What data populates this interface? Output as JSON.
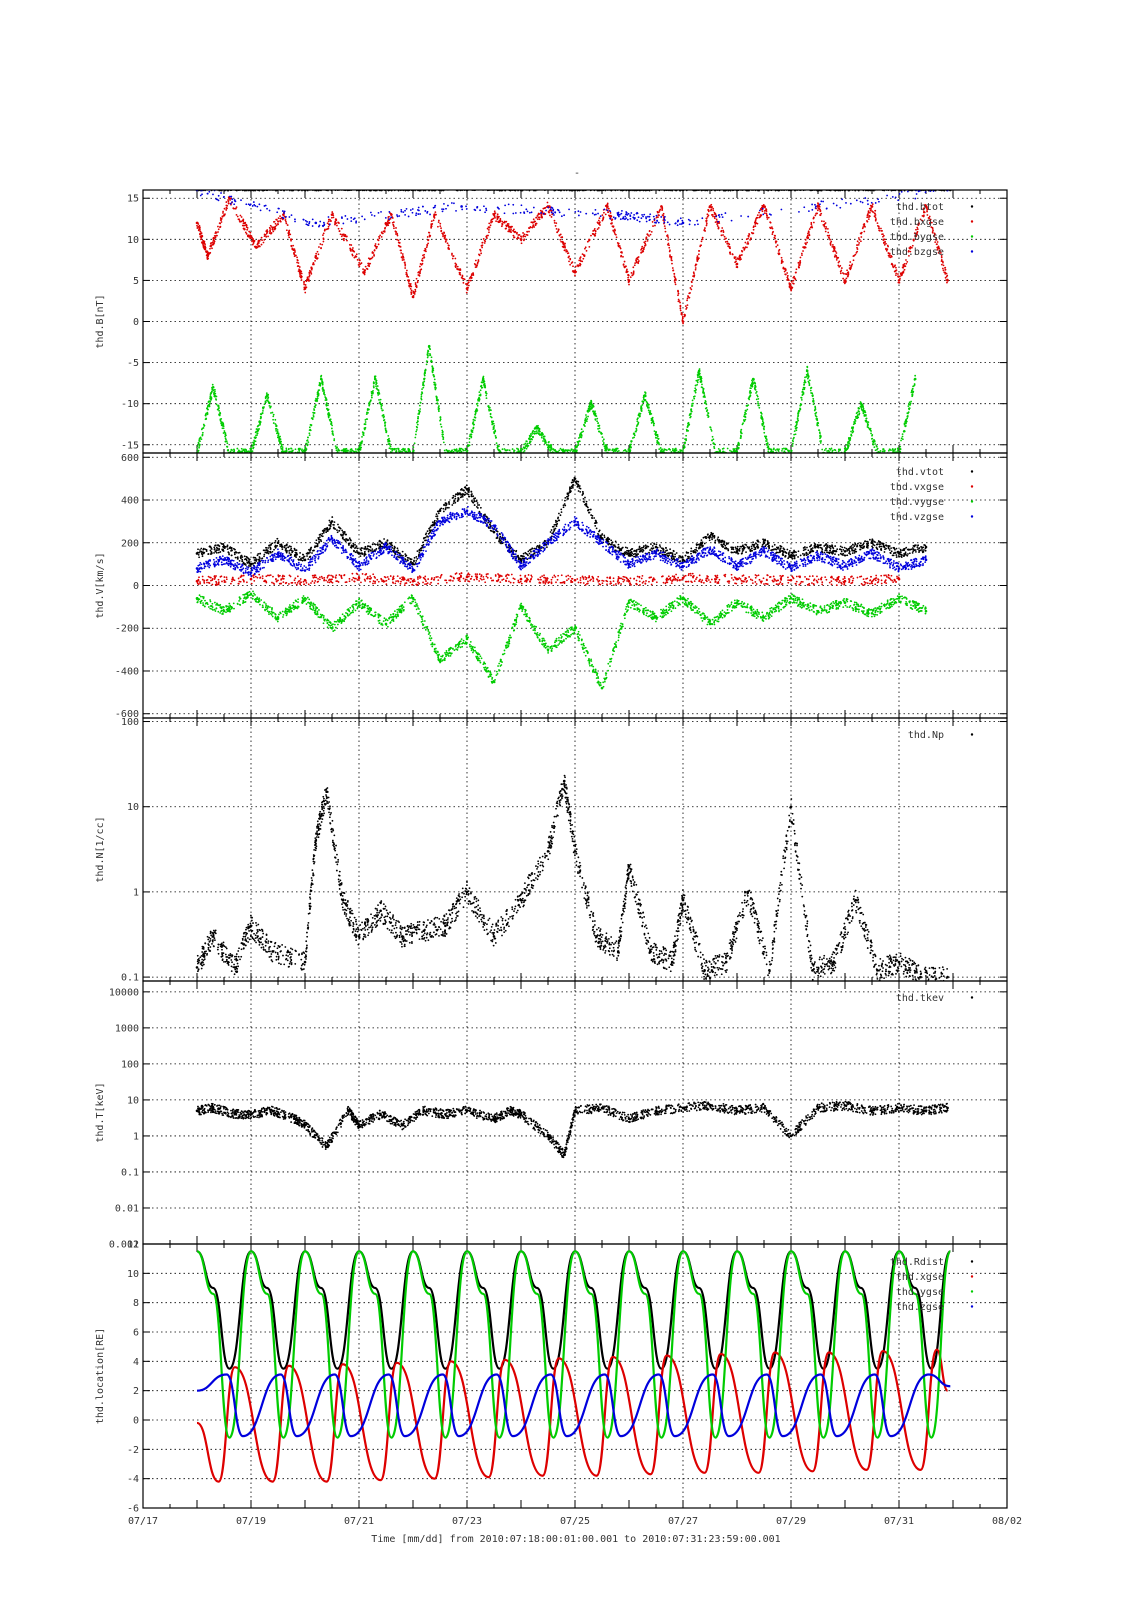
{
  "figure": {
    "title": "-",
    "xlabel": "Time [mm/dd]  from 2010:07:18:00:01:00.001  to  2010:07:31:23:59:00.001"
  },
  "chart_data": [
    {
      "type": "scatter",
      "ylabel": "thd.B[nT]",
      "ylim": [
        -16,
        16
      ],
      "yscale": "linear",
      "yticks": [
        15,
        10,
        5,
        0,
        -5,
        -10,
        -15
      ],
      "ytick_labels": [
        "15",
        "10",
        "5",
        "0",
        "-5",
        "-10",
        "-15"
      ],
      "xlim": [
        0,
        16
      ],
      "xticks": [
        0,
        2,
        4,
        6,
        8,
        10,
        12,
        14,
        16
      ],
      "xtick_labels": [
        "07/17",
        "07/19",
        "07/21",
        "07/23",
        "07/25",
        "07/27",
        "07/29",
        "07/31",
        "08/02"
      ],
      "grid": true,
      "legend": "top-right",
      "series": [
        {
          "name": "thd.btot",
          "color": "#000000",
          "x": [
            1.0,
            2.0,
            3.0,
            4.0,
            5.0,
            6.0,
            7.0,
            8.0,
            9.0,
            10.0,
            11.0,
            12.0,
            13.0,
            14.0,
            14.95
          ],
          "y": [
            16,
            16,
            16,
            16,
            16,
            16,
            16,
            16,
            16,
            16,
            16,
            16,
            16,
            16,
            16
          ]
        },
        {
          "name": "thd.bxgse",
          "color": "#dd0000",
          "x": [
            1.0,
            1.2,
            1.6,
            2.1,
            2.6,
            3.0,
            3.5,
            4.1,
            4.6,
            5.0,
            5.4,
            6.0,
            6.5,
            7.0,
            7.5,
            8.0,
            8.6,
            9.0,
            9.6,
            10.0,
            10.5,
            11.0,
            11.5,
            12.0,
            12.5,
            13.0,
            13.5,
            14.0,
            14.5,
            14.9
          ],
          "y": [
            12,
            8,
            15,
            9,
            13,
            4,
            13,
            6,
            13,
            3,
            13,
            4,
            13,
            10,
            14,
            6,
            14,
            5,
            14,
            0,
            14,
            7,
            14,
            4,
            14,
            5,
            14,
            5,
            14,
            5
          ]
        },
        {
          "name": "thd.bygse",
          "color": "#00cc00",
          "x": [
            1.0,
            1.3,
            1.6,
            2.0,
            2.3,
            2.6,
            3.0,
            3.3,
            3.6,
            4.0,
            4.3,
            4.6,
            5.0,
            5.3,
            5.6,
            6.0,
            6.3,
            6.6,
            7.0,
            7.3,
            7.6,
            8.0,
            8.3,
            8.6,
            9.0,
            9.3,
            9.6,
            10.0,
            10.3,
            10.6,
            11.0,
            11.3,
            11.6,
            12.0,
            12.3,
            12.6,
            13.0,
            13.3,
            13.6,
            14.0,
            14.3
          ],
          "y": [
            -16,
            -8,
            -16,
            -16,
            -9,
            -16,
            -16,
            -7,
            -16,
            -16,
            -7,
            -16,
            -16,
            -3,
            -16,
            -16,
            -7,
            -16,
            -16,
            -13,
            -16,
            -16,
            -10,
            -16,
            -16,
            -9,
            -16,
            -16,
            -6,
            -16,
            -16,
            -7,
            -16,
            -16,
            -6,
            -16,
            -16,
            -10,
            -16,
            -16,
            -7
          ]
        },
        {
          "name": "thd.bzgse",
          "color": "#0000dd",
          "x": [
            1.0,
            3.2,
            5.9,
            8.8,
            10.0,
            14.9
          ],
          "y": [
            16,
            12,
            14,
            13,
            12,
            16
          ]
        }
      ]
    },
    {
      "type": "scatter",
      "ylabel": "thd.V[km/s]",
      "ylim": [
        -620,
        620
      ],
      "yscale": "linear",
      "yticks": [
        600,
        400,
        200,
        0,
        -200,
        -400,
        -600
      ],
      "ytick_labels": [
        "600",
        "400",
        "200",
        "0",
        "-200",
        "-400",
        "-600"
      ],
      "xlim": [
        0,
        16
      ],
      "grid": true,
      "legend": "top-right",
      "series": [
        {
          "name": "thd.vtot",
          "color": "#000000",
          "x": [
            1.0,
            1.5,
            2.0,
            2.5,
            3.0,
            3.5,
            4.0,
            4.5,
            5.0,
            5.5,
            6.0,
            6.5,
            7.0,
            7.5,
            8.0,
            8.5,
            9.0,
            9.5,
            10.0,
            10.5,
            11.0,
            11.5,
            12.0,
            12.5,
            13.0,
            13.5,
            14.0,
            14.5
          ],
          "y": [
            150,
            180,
            100,
            200,
            120,
            300,
            150,
            200,
            100,
            350,
            450,
            250,
            120,
            200,
            500,
            220,
            150,
            180,
            120,
            230,
            160,
            200,
            140,
            180,
            160,
            200,
            150,
            180
          ]
        },
        {
          "name": "thd.vxgse",
          "color": "#dd0000",
          "x": [
            1.0,
            2.0,
            3.0,
            4.0,
            5.0,
            6.0,
            7.0,
            8.0,
            9.0,
            10.0,
            11.0,
            12.0,
            13.0,
            14.0
          ],
          "y": [
            20,
            30,
            25,
            35,
            20,
            40,
            30,
            25,
            20,
            35,
            30,
            25,
            20,
            30
          ]
        },
        {
          "name": "thd.vygse",
          "color": "#00cc00",
          "x": [
            1.0,
            1.5,
            2.0,
            2.5,
            3.0,
            3.5,
            4.0,
            4.5,
            5.0,
            5.5,
            6.0,
            6.5,
            7.0,
            7.5,
            8.0,
            8.5,
            9.0,
            9.5,
            10.0,
            10.5,
            11.0,
            11.5,
            12.0,
            12.5,
            13.0,
            13.5,
            14.0,
            14.5
          ],
          "y": [
            -60,
            -120,
            -40,
            -150,
            -60,
            -200,
            -80,
            -180,
            -60,
            -350,
            -250,
            -450,
            -100,
            -300,
            -200,
            -480,
            -80,
            -150,
            -60,
            -180,
            -80,
            -150,
            -60,
            -120,
            -80,
            -130,
            -60,
            -120
          ]
        },
        {
          "name": "thd.vzgse",
          "color": "#0000dd",
          "x": [
            1.0,
            1.5,
            2.0,
            2.5,
            3.0,
            3.5,
            4.0,
            4.5,
            5.0,
            5.5,
            6.0,
            6.5,
            7.0,
            7.5,
            8.0,
            8.5,
            9.0,
            9.5,
            10.0,
            10.5,
            11.0,
            11.5,
            12.0,
            12.5,
            13.0,
            13.5,
            14.0,
            14.5
          ],
          "y": [
            80,
            120,
            60,
            150,
            70,
            220,
            90,
            180,
            70,
            300,
            350,
            280,
            90,
            200,
            300,
            200,
            100,
            150,
            90,
            170,
            90,
            160,
            80,
            140,
            90,
            150,
            80,
            120
          ]
        }
      ]
    },
    {
      "type": "scatter",
      "ylabel": "thd.N[1/cc]",
      "ylim": [
        0.09,
        110
      ],
      "yscale": "log",
      "yticks": [
        100,
        10,
        1,
        0.1
      ],
      "ytick_labels": [
        "100",
        "10",
        "1",
        "0.1"
      ],
      "xlim": [
        0,
        16
      ],
      "grid": true,
      "legend": "top-right",
      "series": [
        {
          "name": "thd.Np",
          "color": "#000000",
          "x": [
            1.0,
            1.3,
            1.7,
            2.0,
            2.4,
            3.0,
            3.2,
            3.4,
            3.7,
            4.0,
            4.4,
            4.8,
            5.2,
            5.6,
            6.0,
            6.5,
            7.0,
            7.5,
            7.8,
            8.0,
            8.4,
            8.8,
            9.0,
            9.4,
            9.8,
            10.0,
            10.4,
            10.8,
            11.2,
            11.6,
            12.0,
            12.4,
            12.8,
            13.2,
            13.6,
            14.0,
            14.4,
            14.9
          ],
          "y": [
            0.13,
            0.3,
            0.13,
            0.4,
            0.2,
            0.15,
            4,
            15,
            0.8,
            0.3,
            0.6,
            0.3,
            0.35,
            0.4,
            1,
            0.3,
            0.8,
            3,
            20,
            3,
            0.3,
            0.2,
            2,
            0.2,
            0.15,
            0.8,
            0.12,
            0.15,
            1,
            0.12,
            10,
            0.12,
            0.15,
            0.8,
            0.12,
            0.15,
            0.1,
            0.1
          ]
        }
      ]
    },
    {
      "type": "scatter",
      "ylabel": "thd.T[keV]",
      "ylim": [
        0.001,
        20000
      ],
      "yscale": "log",
      "yticks": [
        10000,
        1000,
        100,
        10,
        1,
        0.1,
        0.01,
        0.001
      ],
      "ytick_labels": [
        "10000",
        "1000",
        "100",
        "10",
        "1",
        "0.1",
        "0.01",
        "0.001"
      ],
      "xlim": [
        0,
        16
      ],
      "grid": true,
      "legend": "top-right",
      "series": [
        {
          "name": "thd.tkev",
          "color": "#000000",
          "x": [
            1.0,
            1.3,
            1.7,
            2.0,
            2.4,
            2.8,
            3.0,
            3.4,
            3.8,
            4.0,
            4.4,
            4.8,
            5.2,
            5.6,
            6.0,
            6.5,
            6.8,
            7.0,
            7.5,
            7.8,
            8.0,
            8.5,
            9.0,
            9.5,
            10.0,
            10.5,
            11.0,
            11.5,
            12.0,
            12.5,
            13.0,
            13.5,
            14.0,
            14.5,
            14.9
          ],
          "y": [
            5,
            6,
            4,
            4,
            5,
            3,
            2,
            0.5,
            5,
            2,
            4,
            2,
            5,
            4,
            5,
            3,
            5,
            4,
            1,
            0.3,
            5,
            6,
            3,
            5,
            6,
            7,
            5,
            6,
            1,
            6,
            7,
            5,
            6,
            5,
            6
          ]
        }
      ]
    },
    {
      "type": "line",
      "ylabel": "thd.location[RE]",
      "ylim": [
        -6,
        12
      ],
      "yscale": "linear",
      "yticks": [
        12,
        10,
        8,
        6,
        4,
        2,
        0,
        -2,
        -4,
        -6
      ],
      "ytick_labels": [
        "12",
        "10",
        "8",
        "6",
        "4",
        "2",
        "0",
        "-2",
        "-4",
        "-6"
      ],
      "xlim": [
        0,
        16
      ],
      "grid": true,
      "legend": "top-right",
      "series": [
        {
          "name": "thd.Rdist",
          "color": "#000000",
          "x": [
            1.0,
            1.3,
            1.6,
            2.0,
            2.3,
            2.6,
            3.0,
            3.3,
            3.6,
            4.0,
            4.3,
            4.6,
            5.0,
            5.3,
            5.6,
            6.0,
            6.3,
            6.6,
            7.0,
            7.3,
            7.6,
            8.0,
            8.3,
            8.6,
            9.0,
            9.3,
            9.6,
            10.0,
            10.3,
            10.6,
            11.0,
            11.3,
            11.6,
            12.0,
            12.3,
            12.6,
            13.0,
            13.3,
            13.6,
            14.0,
            14.3,
            14.6,
            14.95
          ],
          "y": [
            11.5,
            9,
            3.5,
            11.5,
            9,
            3.5,
            11.5,
            9,
            3.5,
            11.5,
            9,
            3.5,
            11.5,
            9,
            3.5,
            11.5,
            9,
            3.5,
            11.5,
            9,
            3.5,
            11.5,
            9,
            3.5,
            11.5,
            9,
            3.5,
            11.5,
            9,
            3.5,
            11.5,
            9,
            3.5,
            11.5,
            9,
            3.5,
            11.5,
            9,
            3.5,
            11.5,
            9,
            3.5,
            11.5
          ]
        },
        {
          "name": "thd.xgse",
          "color": "#dd0000",
          "x": [
            1.0,
            1.4,
            1.7,
            2.4,
            2.7,
            3.4,
            3.7,
            4.4,
            4.7,
            5.4,
            5.7,
            6.4,
            6.7,
            7.4,
            7.7,
            8.4,
            8.7,
            9.4,
            9.7,
            10.4,
            10.7,
            11.4,
            11.7,
            12.4,
            12.7,
            13.4,
            13.7,
            14.4,
            14.7,
            14.9
          ],
          "y": [
            -0.2,
            -4.2,
            3.6,
            -4.2,
            3.7,
            -4.2,
            3.8,
            -4.1,
            3.9,
            -4.0,
            4.0,
            -3.9,
            4.1,
            -3.8,
            4.2,
            -3.8,
            4.3,
            -3.7,
            4.4,
            -3.6,
            4.5,
            -3.6,
            4.6,
            -3.5,
            4.6,
            -3.4,
            4.7,
            -3.4,
            4.8,
            2.0
          ]
        },
        {
          "name": "thd.ygse",
          "color": "#00cc00",
          "x": [
            1.0,
            1.3,
            1.6,
            2.0,
            2.3,
            2.6,
            3.0,
            3.3,
            3.6,
            4.0,
            4.3,
            4.6,
            5.0,
            5.3,
            5.6,
            6.0,
            6.3,
            6.6,
            7.0,
            7.3,
            7.6,
            8.0,
            8.3,
            8.6,
            9.0,
            9.3,
            9.6,
            10.0,
            10.3,
            10.6,
            11.0,
            11.3,
            11.6,
            12.0,
            12.3,
            12.6,
            13.0,
            13.3,
            13.6,
            14.0,
            14.3,
            14.6,
            14.95
          ],
          "y": [
            11.5,
            8.6,
            -1.2,
            11.5,
            8.6,
            -1.2,
            11.5,
            8.6,
            -1.2,
            11.5,
            8.6,
            -1.2,
            11.5,
            8.6,
            -1.2,
            11.5,
            8.6,
            -1.2,
            11.5,
            8.6,
            -1.2,
            11.5,
            8.6,
            -1.2,
            11.5,
            8.6,
            -1.2,
            11.5,
            8.6,
            -1.2,
            11.5,
            8.6,
            -1.2,
            11.5,
            8.6,
            -1.2,
            11.5,
            8.6,
            -1.2,
            11.5,
            8.6,
            -1.2,
            11.5
          ]
        },
        {
          "name": "thd.zgse",
          "color": "#0000dd",
          "x": [
            1.0,
            1.55,
            1.85,
            2.55,
            2.85,
            3.55,
            3.85,
            4.55,
            4.85,
            5.55,
            5.85,
            6.55,
            6.85,
            7.55,
            7.85,
            8.55,
            8.85,
            9.55,
            9.85,
            10.55,
            10.85,
            11.55,
            11.85,
            12.55,
            12.85,
            13.55,
            13.85,
            14.55,
            14.95
          ],
          "y": [
            2.0,
            3.1,
            -1.1,
            3.1,
            -1.1,
            3.1,
            -1.1,
            3.1,
            -1.1,
            3.1,
            -1.1,
            3.1,
            -1.1,
            3.1,
            -1.1,
            3.1,
            -1.1,
            3.1,
            -1.1,
            3.1,
            -1.1,
            3.1,
            -1.1,
            3.1,
            -1.1,
            3.1,
            -1.1,
            3.1,
            2.3
          ]
        }
      ]
    }
  ]
}
